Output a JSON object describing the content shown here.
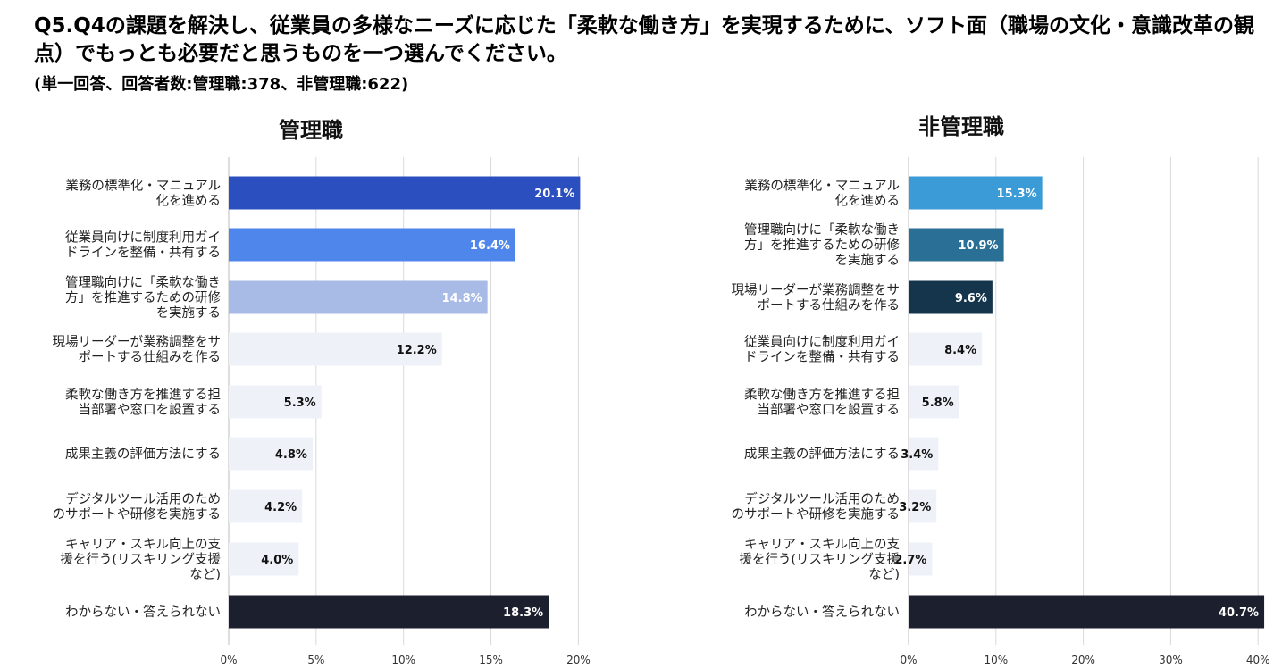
{
  "question": {
    "title": "Q5.Q4の課題を解決し、従業員の多様なニーズに応じた「柔軟な働き方」を実現するために、ソフト面（職場の文化・意識改革の観点）でもっとも必要だと思うものを一つ選んでください。",
    "note": "(単一回答、回答者数:管理職:378、非管理職:622)"
  },
  "chart_data": [
    {
      "type": "bar",
      "orientation": "horizontal",
      "title": "管理職",
      "categories": [
        "業務の標準化・マニュアル\n化を進める",
        "従業員向けに制度利用ガイ\nドラインを整備・共有する",
        "管理職向けに「柔軟な働き\n方」を推進するための研修\nを実施する",
        "現場リーダーが業務調整をサ\nポートする仕組みを作る",
        "柔軟な働き方を推進する担\n当部署や窓口を設置する",
        "成果主義の評価方法にする",
        "デジタルツール活用のため\nのサポートや研修を実施する",
        "キャリア・スキル向上の支\n援を行う(リスキリング支援\nなど)",
        "わからない・答えられない"
      ],
      "values": [
        20.1,
        16.4,
        14.8,
        12.2,
        5.3,
        4.8,
        4.2,
        4.0,
        18.3
      ],
      "labels": [
        "20.1%",
        "16.4%",
        "14.8%",
        "12.2%",
        "5.3%",
        "4.8%",
        "4.2%",
        "4.0%",
        "18.3%"
      ],
      "colors": [
        "#2c4fbf",
        "#4f86ec",
        "#a7bbe6",
        "#eef2f8",
        "#eef2f8",
        "#eef2f8",
        "#eef2f8",
        "#eef2f8",
        "#1c1f2e"
      ],
      "label_colors": [
        "#ffffff",
        "#ffffff",
        "#ffffff",
        "#111111",
        "#111111",
        "#111111",
        "#111111",
        "#111111",
        "#ffffff"
      ],
      "xlim": [
        0,
        21
      ],
      "ticks": [
        0,
        5,
        10,
        15,
        20
      ],
      "tick_labels": [
        "0%",
        "5%",
        "10%",
        "15%",
        "20%"
      ],
      "grid": true
    },
    {
      "type": "bar",
      "orientation": "horizontal",
      "title": "非管理職",
      "categories": [
        "業務の標準化・マニュアル\n化を進める",
        "管理職向けに「柔軟な働き\n方」を推進するための研修\nを実施する",
        "現場リーダーが業務調整をサ\nポートする仕組みを作る",
        "従業員向けに制度利用ガイ\nドラインを整備・共有する",
        "柔軟な働き方を推進する担\n当部署や窓口を設置する",
        "成果主義の評価方法にする",
        "デジタルツール活用のため\nのサポートや研修を実施する",
        "キャリア・スキル向上の支\n援を行う(リスキリング支援\nなど)",
        "わからない・答えられない"
      ],
      "values": [
        15.3,
        10.9,
        9.6,
        8.4,
        5.8,
        3.4,
        3.2,
        2.7,
        40.7
      ],
      "labels": [
        "15.3%",
        "10.9%",
        "9.6%",
        "8.4%",
        "5.8%",
        "3.4%",
        "3.2%",
        "2.7%",
        "40.7%"
      ],
      "colors": [
        "#3b9bd6",
        "#2a6f96",
        "#15354c",
        "#eef2f8",
        "#eef2f8",
        "#eef2f8",
        "#eef2f8",
        "#eef2f8",
        "#1c1f2e"
      ],
      "label_colors": [
        "#ffffff",
        "#ffffff",
        "#ffffff",
        "#111111",
        "#111111",
        "#111111",
        "#111111",
        "#111111",
        "#ffffff"
      ],
      "xlim": [
        0,
        41
      ],
      "ticks": [
        0,
        10,
        20,
        30,
        40
      ],
      "tick_labels": [
        "0%",
        "10%",
        "20%",
        "30%",
        "40%"
      ],
      "grid": true
    }
  ]
}
